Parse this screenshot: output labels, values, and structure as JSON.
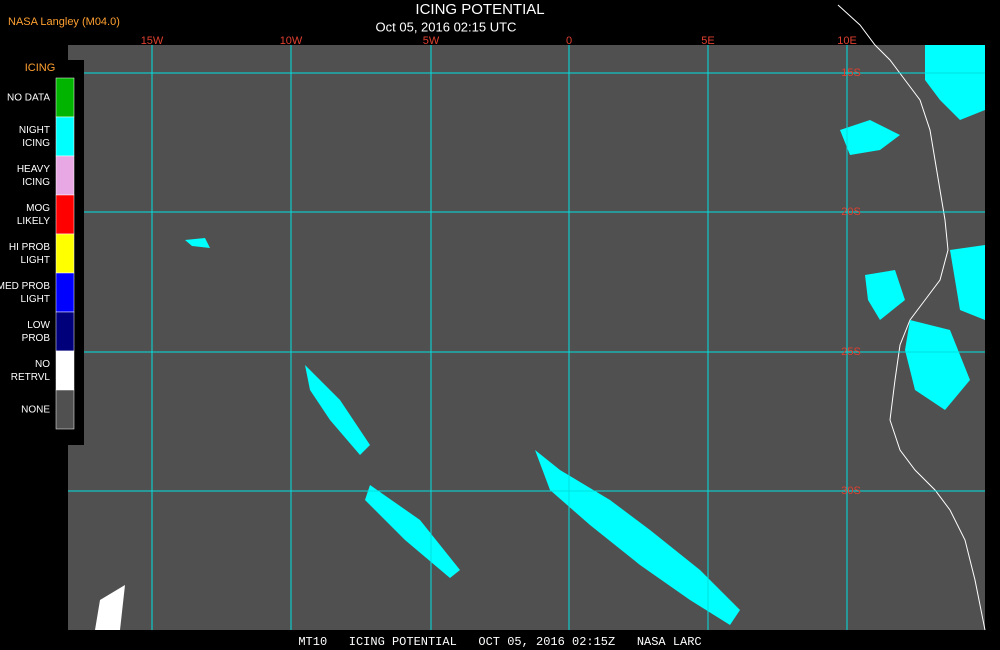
{
  "header": {
    "source": "NASA Langley (M04.0)",
    "title": "ICING POTENTIAL",
    "subtitle": "Oct 05, 2016 02:15 UTC"
  },
  "legend": {
    "title": "ICING",
    "items": [
      {
        "label": [
          "NO DATA"
        ],
        "color": "#00b400"
      },
      {
        "label": [
          "NIGHT",
          "ICING"
        ],
        "color": "#00ffff"
      },
      {
        "label": [
          "HEAVY",
          "ICING"
        ],
        "color": "#e8a8e4"
      },
      {
        "label": [
          "MOG",
          "LIKELY"
        ],
        "color": "#ff0000"
      },
      {
        "label": [
          "HI PROB",
          "LIGHT"
        ],
        "color": "#ffff00"
      },
      {
        "label": [
          "MED PROB",
          "LIGHT"
        ],
        "color": "#0000ff"
      },
      {
        "label": [
          "LOW",
          "PROB"
        ],
        "color": "#00007a"
      },
      {
        "label": [
          "NO",
          "RETRVL"
        ],
        "color": "#ffffff"
      },
      {
        "label": [
          "NONE"
        ],
        "color": "#505050"
      }
    ]
  },
  "map": {
    "longitudes": [
      "15W",
      "10W",
      "5W",
      "0",
      "5E",
      "10E"
    ],
    "latitudes": [
      "15S",
      "20S",
      "25S",
      "30S"
    ]
  },
  "footer": "MT10   ICING POTENTIAL   OCT 05, 2016 02:15Z   NASA LARC"
}
